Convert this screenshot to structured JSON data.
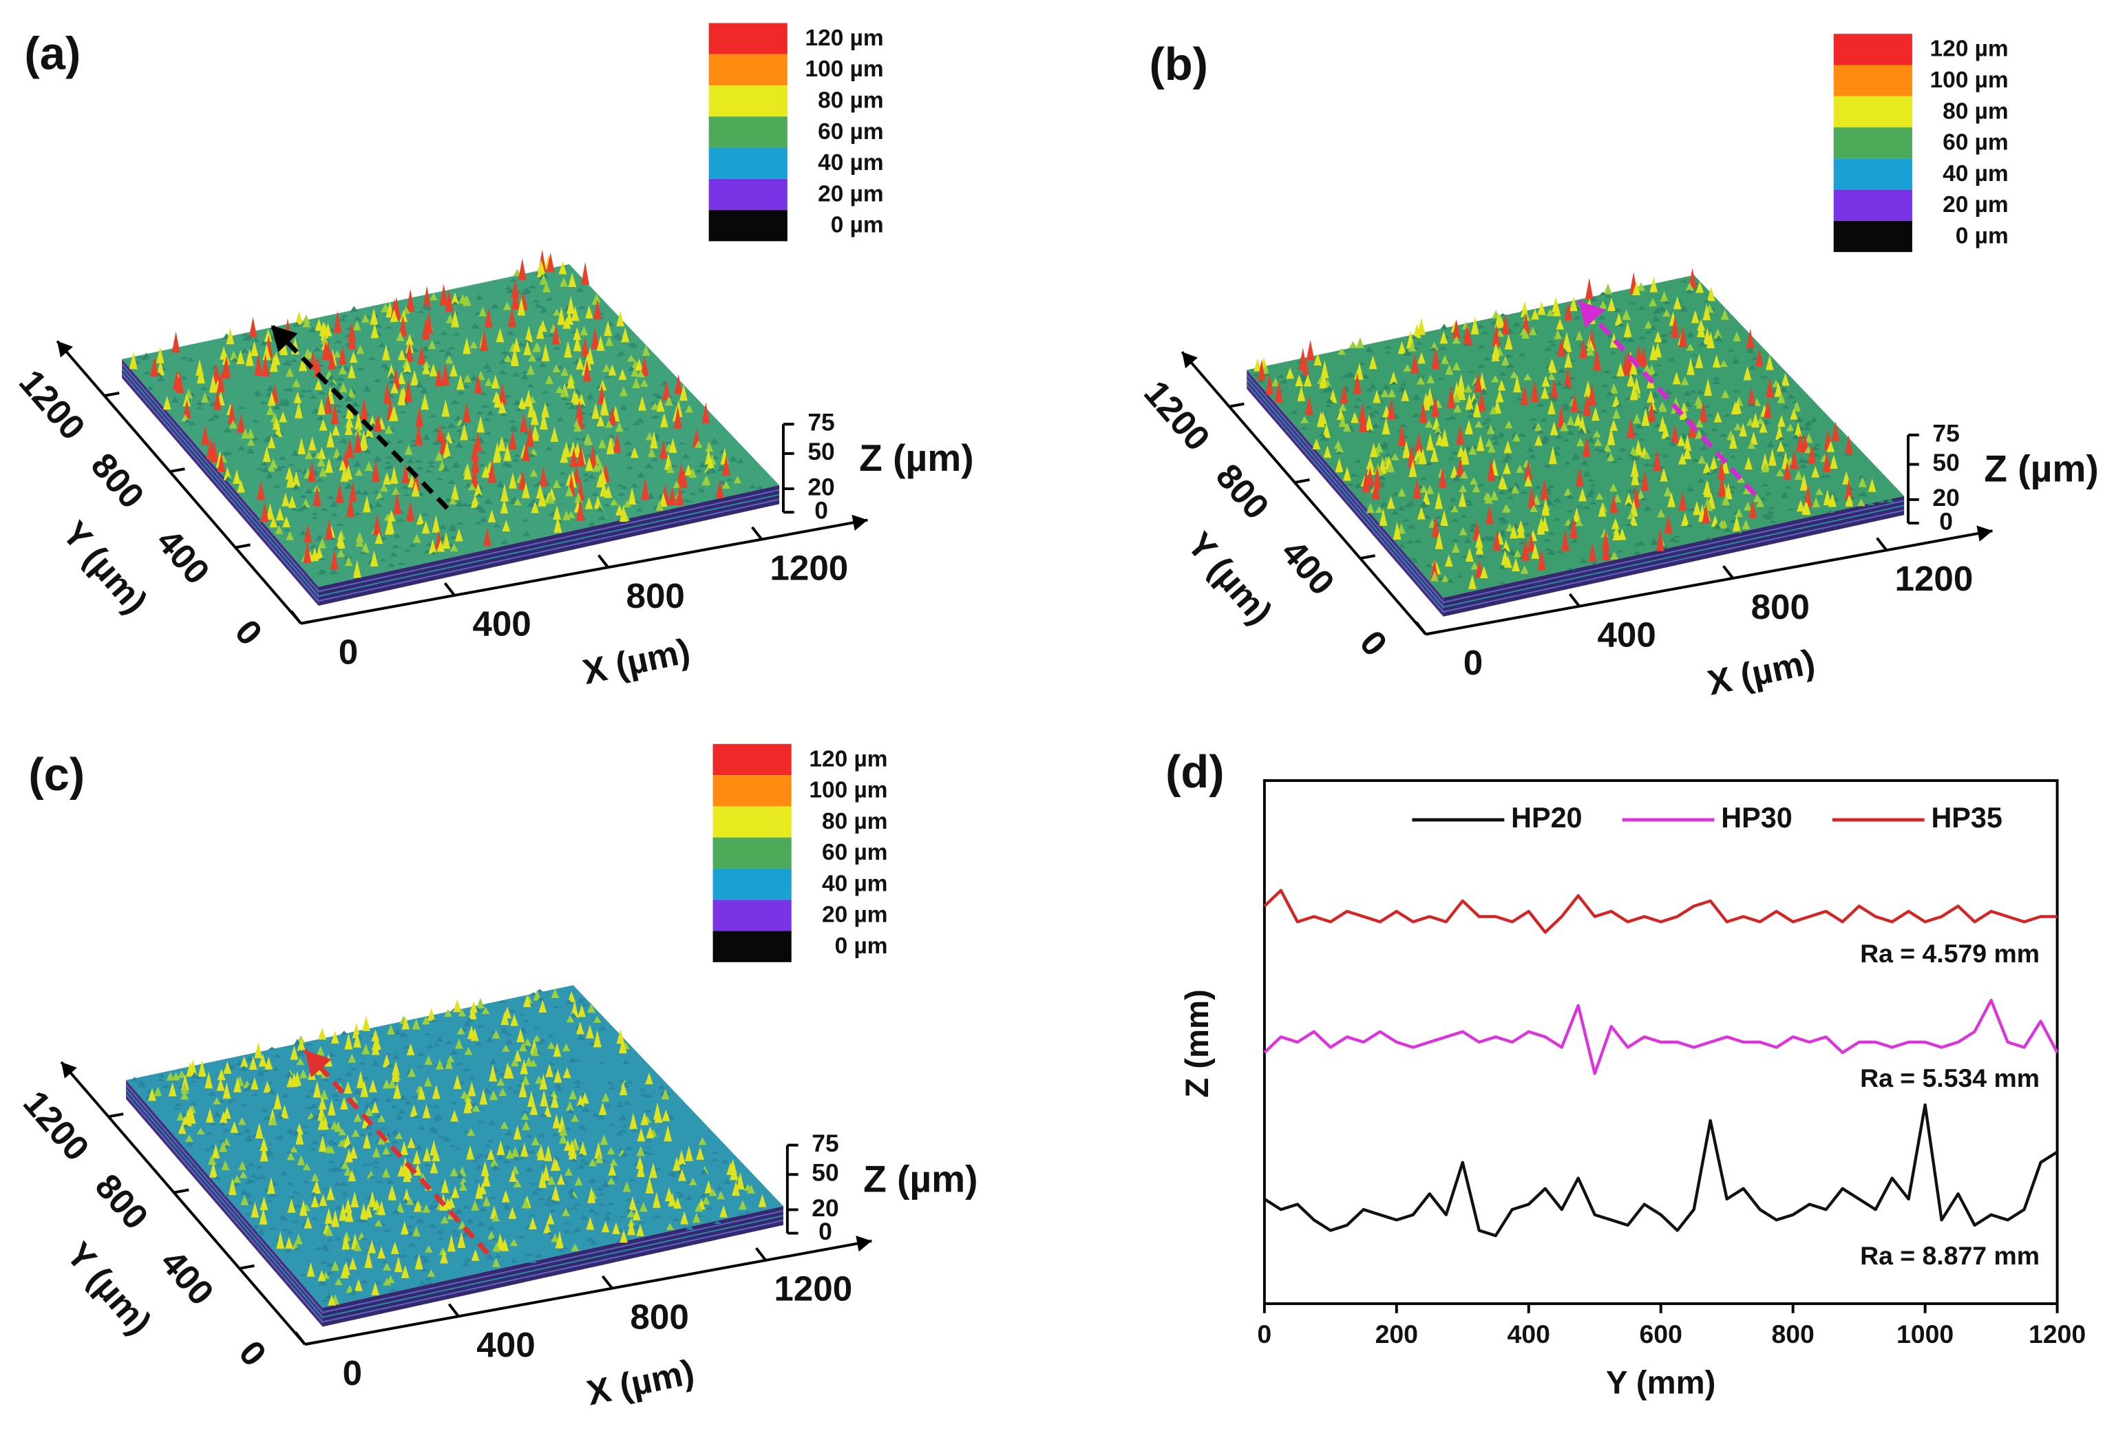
{
  "chart_data": [
    {
      "type": "surface",
      "panel": "(a)",
      "colorbar": [
        {
          "value": 120,
          "label": "120 µm",
          "color": "#f02828"
        },
        {
          "value": 100,
          "label": "100 µm",
          "color": "#ff8c10"
        },
        {
          "value": 80,
          "label": "80 µm",
          "color": "#e6ea1e"
        },
        {
          "value": 60,
          "label": "60 µm",
          "color": "#4caa58"
        },
        {
          "value": 40,
          "label": "40 µm",
          "color": "#1aa0d2"
        },
        {
          "value": 20,
          "label": "20 µm",
          "color": "#7a34e6"
        },
        {
          "value": 0,
          "label": "0 µm",
          "color": "#080808"
        }
      ],
      "xlabel": "X (µm)",
      "ylabel": "Y (µm)",
      "zlabel": "Z (µm)",
      "xlim": [
        0,
        1200
      ],
      "xticks": [
        0,
        400,
        800,
        1200
      ],
      "ylim": [
        0,
        1200
      ],
      "yticks": [
        0,
        400,
        800,
        1200
      ],
      "zlim": [
        0,
        75
      ],
      "zticks": [
        0,
        20,
        50,
        75
      ],
      "profile_color": "#000000"
    },
    {
      "type": "surface",
      "panel": "(b)",
      "colorbar": [
        {
          "value": 120,
          "label": "120 µm",
          "color": "#f02828"
        },
        {
          "value": 100,
          "label": "100 µm",
          "color": "#ff8c10"
        },
        {
          "value": 80,
          "label": "80 µm",
          "color": "#e6ea1e"
        },
        {
          "value": 60,
          "label": "60 µm",
          "color": "#4caa58"
        },
        {
          "value": 40,
          "label": "40 µm",
          "color": "#1aa0d2"
        },
        {
          "value": 20,
          "label": "20 µm",
          "color": "#7a34e6"
        },
        {
          "value": 0,
          "label": "0 µm",
          "color": "#080808"
        }
      ],
      "xlabel": "X (µm)",
      "ylabel": "Y (µm)",
      "zlabel": "Z (µm)",
      "xlim": [
        0,
        1200
      ],
      "xticks": [
        0,
        400,
        800,
        1200
      ],
      "ylim": [
        0,
        1200
      ],
      "yticks": [
        0,
        400,
        800,
        1200
      ],
      "zlim": [
        0,
        75
      ],
      "zticks": [
        0,
        20,
        50,
        75
      ],
      "profile_color": "#d629d6"
    },
    {
      "type": "surface",
      "panel": "(c)",
      "colorbar": [
        {
          "value": 120,
          "label": "120 µm",
          "color": "#f02828"
        },
        {
          "value": 100,
          "label": "100 µm",
          "color": "#ff8c10"
        },
        {
          "value": 80,
          "label": "80 µm",
          "color": "#e6ea1e"
        },
        {
          "value": 60,
          "label": "60 µm",
          "color": "#4caa58"
        },
        {
          "value": 40,
          "label": "40 µm",
          "color": "#1aa0d2"
        },
        {
          "value": 20,
          "label": "20 µm",
          "color": "#7a34e6"
        },
        {
          "value": 0,
          "label": "0 µm",
          "color": "#080808"
        }
      ],
      "xlabel": "X (µm)",
      "ylabel": "Y (µm)",
      "zlabel": "Z (µm)",
      "xlim": [
        0,
        1200
      ],
      "xticks": [
        0,
        400,
        800,
        1200
      ],
      "ylim": [
        0,
        1200
      ],
      "yticks": [
        0,
        400,
        800,
        1200
      ],
      "zlim": [
        0,
        75
      ],
      "zticks": [
        0,
        20,
        50,
        75
      ],
      "profile_color": "#e03030"
    },
    {
      "type": "line",
      "panel": "(d)",
      "xlabel": "Y (mm)",
      "ylabel": "Z (mm)",
      "x": [
        0,
        25,
        50,
        75,
        100,
        125,
        150,
        175,
        200,
        225,
        250,
        275,
        300,
        325,
        350,
        375,
        400,
        425,
        450,
        475,
        500,
        525,
        550,
        575,
        600,
        625,
        650,
        675,
        700,
        725,
        750,
        775,
        800,
        825,
        850,
        875,
        900,
        925,
        950,
        975,
        1000,
        1025,
        1050,
        1075,
        1100,
        1125,
        1150,
        1175,
        1200
      ],
      "xlim": [
        0,
        1200
      ],
      "xticks": [
        0,
        200,
        400,
        600,
        800,
        1000,
        1200
      ],
      "ylim": [
        0,
        100
      ],
      "legend": "top",
      "series": [
        {
          "name": "HP20",
          "color": "#111111",
          "values": [
            20,
            18,
            19,
            16,
            14,
            15,
            18,
            17,
            16,
            17,
            21,
            17,
            27,
            14,
            13,
            18,
            19,
            22,
            18,
            24,
            17,
            16,
            15,
            19,
            17,
            14,
            18,
            35,
            20,
            22,
            18,
            16,
            17,
            19,
            18,
            22,
            20,
            18,
            24,
            20,
            38,
            16,
            21,
            15,
            17,
            16,
            18,
            27,
            29
          ]
        },
        {
          "name": "HP30",
          "color": "#dd33dd",
          "values": [
            48,
            51,
            50,
            52,
            49,
            51,
            50,
            52,
            50,
            49,
            50,
            51,
            52,
            50,
            51,
            50,
            52,
            51,
            49,
            57,
            44,
            53,
            49,
            51,
            50,
            50,
            49,
            50,
            51,
            50,
            50,
            49,
            51,
            50,
            51,
            48,
            50,
            50,
            49,
            50,
            50,
            49,
            50,
            52,
            58,
            50,
            49,
            54,
            48
          ]
        },
        {
          "name": "HP35",
          "color": "#d42424",
          "values": [
            76,
            79,
            73,
            74,
            73,
            75,
            74,
            73,
            75,
            73,
            74,
            73,
            77,
            74,
            74,
            73,
            75,
            71,
            74,
            78,
            74,
            75,
            73,
            74,
            73,
            74,
            76,
            77,
            73,
            74,
            73,
            75,
            73,
            74,
            75,
            73,
            76,
            74,
            73,
            75,
            73,
            74,
            76,
            73,
            75,
            74,
            73,
            74,
            74
          ]
        }
      ],
      "annotations": [
        "Ra = 4.579 mm",
        "Ra = 5.534 mm",
        "Ra = 8.877 mm"
      ]
    }
  ]
}
